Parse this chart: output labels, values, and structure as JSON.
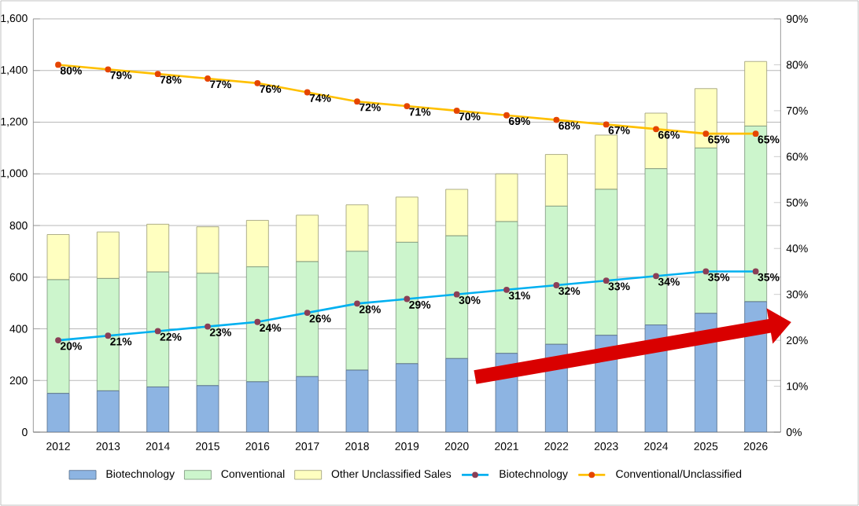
{
  "chart_data": {
    "type": "bar",
    "stacked": true,
    "grid": "y",
    "legend": "bottom",
    "marker": "circle",
    "categories": [
      "2012",
      "2013",
      "2014",
      "2015",
      "2016",
      "2017",
      "2018",
      "2019",
      "2020",
      "2021",
      "2022",
      "2023",
      "2024",
      "2025",
      "2026"
    ],
    "ylim": [
      0,
      1600
    ],
    "yticks": [
      0,
      200,
      400,
      600,
      800,
      {
        "value": 1000,
        "label": "1,000"
      },
      {
        "value": 1200,
        "label": "1,200"
      },
      {
        "value": 1400,
        "label": "1,400"
      },
      {
        "value": 1600,
        "label": "1,600"
      }
    ],
    "y2lim": [
      0,
      90
    ],
    "y2ticks": [
      {
        "value": 0,
        "label": "0%"
      },
      {
        "value": 10,
        "label": "10%"
      },
      {
        "value": 20,
        "label": "20%"
      },
      {
        "value": 30,
        "label": "30%"
      },
      {
        "value": 40,
        "label": "40%"
      },
      {
        "value": 50,
        "label": "50%"
      },
      {
        "value": 60,
        "label": "60%"
      },
      {
        "value": 70,
        "label": "70%"
      },
      {
        "value": 80,
        "label": "80%"
      },
      {
        "value": 90,
        "label": "90%"
      }
    ],
    "series": [
      {
        "name": "Biotechnology",
        "color": "#8db4e2",
        "values": [
          150,
          160,
          175,
          180,
          195,
          215,
          240,
          265,
          285,
          305,
          340,
          375,
          415,
          460,
          505
        ]
      },
      {
        "name": "Conventional",
        "color": "#ccf5cc",
        "values": [
          440,
          435,
          445,
          435,
          445,
          445,
          460,
          470,
          475,
          510,
          535,
          565,
          605,
          640,
          680
        ]
      },
      {
        "name": "Other Unclassified Sales",
        "color": "#ffffc0",
        "values": [
          175,
          180,
          185,
          180,
          180,
          180,
          180,
          175,
          180,
          185,
          200,
          210,
          215,
          230,
          250
        ]
      },
      {
        "name": "Biotechnology",
        "type": "line",
        "axis": "y2",
        "color": "#00b0f0",
        "values": [
          20,
          21,
          22,
          23,
          24,
          26,
          28,
          29,
          30,
          31,
          32,
          33,
          34,
          35,
          35
        ],
        "value_labels": [
          "20%",
          "21%",
          "22%",
          "23%",
          "24%",
          "26%",
          "28%",
          "29%",
          "30%",
          "31%",
          "32%",
          "33%",
          "34%",
          "35%",
          "35%"
        ]
      },
      {
        "name": "Conventional/Unclassified",
        "type": "line",
        "axis": "y2",
        "color": "#ffc000",
        "values": [
          80,
          79,
          78,
          77,
          76,
          74,
          72,
          71,
          70,
          69,
          68,
          67,
          66,
          65,
          65
        ],
        "value_labels": [
          "80%",
          "79%",
          "78%",
          "77%",
          "76%",
          "74%",
          "72%",
          "71%",
          "70%",
          "69%",
          "68%",
          "67%",
          "66%",
          "65%",
          "65%"
        ]
      }
    ]
  }
}
